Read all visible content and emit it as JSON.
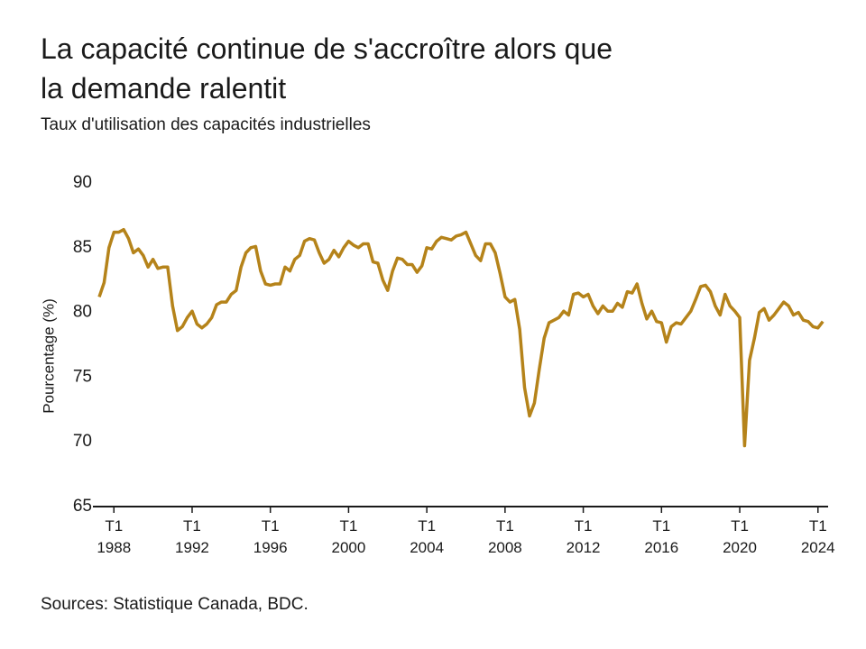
{
  "chart_data": {
    "type": "line",
    "title": "La capacité continue de s'accroître alors que\nla demande ralentit",
    "subtitle": "Taux d'utilisation des capacités industrielles",
    "y_label": "Pourcentage (%)",
    "source": "Sources: Statistique Canada, BDC.",
    "color": "#b5831a",
    "ylim": [
      65,
      90
    ],
    "yticks": [
      65,
      70,
      75,
      80,
      85,
      90
    ],
    "categories": [
      null,
      null,
      null,
      "T1\n1988",
      null,
      null,
      null,
      null,
      null,
      null,
      null,
      null,
      null,
      null,
      null,
      null,
      null,
      null,
      null,
      "T1\n1992",
      null,
      null,
      null,
      null,
      null,
      null,
      null,
      null,
      null,
      null,
      null,
      null,
      null,
      null,
      null,
      "T1\n1996",
      null,
      null,
      null,
      null,
      null,
      null,
      null,
      null,
      null,
      null,
      null,
      null,
      null,
      null,
      null,
      "T1\n2000",
      null,
      null,
      null,
      null,
      null,
      null,
      null,
      null,
      null,
      null,
      null,
      null,
      null,
      null,
      null,
      "T1\n2004",
      null,
      null,
      null,
      null,
      null,
      null,
      null,
      null,
      null,
      null,
      null,
      null,
      null,
      null,
      null,
      "T1\n2008",
      null,
      null,
      null,
      null,
      null,
      null,
      null,
      null,
      null,
      null,
      null,
      null,
      null,
      null,
      null,
      "T1\n2012",
      null,
      null,
      null,
      null,
      null,
      null,
      null,
      null,
      null,
      null,
      null,
      null,
      null,
      null,
      null,
      "T1\n2016",
      null,
      null,
      null,
      null,
      null,
      null,
      null,
      null,
      null,
      null,
      null,
      null,
      null,
      null,
      null,
      "T1\n2020",
      null,
      null,
      null,
      null,
      null,
      null,
      null,
      null,
      null,
      null,
      null,
      null,
      null,
      null,
      null,
      "T1\n2024",
      null
    ],
    "values": [
      81.2,
      82.3,
      85.0,
      86.2,
      86.2,
      86.4,
      85.7,
      84.6,
      84.9,
      84.4,
      83.5,
      84.1,
      83.4,
      83.5,
      83.5,
      80.5,
      78.6,
      78.9,
      79.6,
      80.1,
      79.1,
      78.8,
      79.1,
      79.6,
      80.6,
      80.8,
      80.8,
      81.4,
      81.7,
      83.5,
      84.6,
      85.0,
      85.1,
      83.2,
      82.2,
      82.1,
      82.2,
      82.2,
      83.5,
      83.2,
      84.1,
      84.4,
      85.5,
      85.7,
      85.6,
      84.6,
      83.8,
      84.1,
      84.8,
      84.3,
      85.0,
      85.5,
      85.2,
      85.0,
      85.3,
      85.3,
      83.9,
      83.8,
      82.5,
      81.7,
      83.2,
      84.2,
      84.1,
      83.7,
      83.7,
      83.1,
      83.6,
      85.0,
      84.9,
      85.5,
      85.8,
      85.7,
      85.6,
      85.9,
      86.0,
      86.2,
      85.3,
      84.4,
      84.0,
      85.3,
      85.3,
      84.6,
      83.0,
      81.2,
      80.8,
      81.0,
      78.7,
      74.2,
      72.0,
      73.0,
      75.6,
      78.0,
      79.2,
      79.4,
      79.6,
      80.1,
      79.8,
      81.4,
      81.5,
      81.2,
      81.4,
      80.5,
      79.9,
      80.5,
      80.1,
      80.1,
      80.7,
      80.4,
      81.6,
      81.5,
      82.2,
      80.7,
      79.5,
      80.1,
      79.3,
      79.2,
      77.7,
      78.9,
      79.2,
      79.1,
      79.6,
      80.1,
      81.0,
      82.0,
      82.1,
      81.6,
      80.5,
      79.8,
      81.4,
      80.5,
      80.1,
      79.6,
      69.7,
      76.3,
      78.0,
      80.0,
      80.3,
      79.4,
      79.8,
      80.3,
      80.8,
      80.5,
      79.8,
      80.0,
      79.4,
      79.3,
      78.9,
      78.8,
      79.3
    ]
  }
}
